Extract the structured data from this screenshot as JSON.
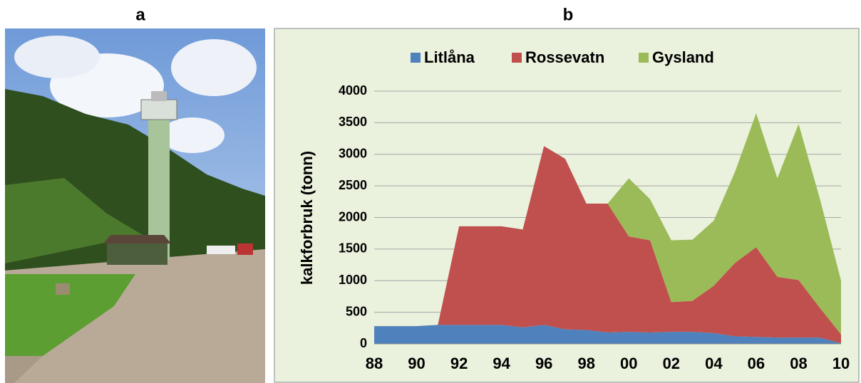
{
  "panel_a": {
    "label": "a"
  },
  "chart_data": {
    "type": "stacked_area",
    "panel_label": "b",
    "y_label": "kalkforbruk (tonn)",
    "categories": [
      "88",
      null,
      "90",
      null,
      "92",
      null,
      "94",
      null,
      "96",
      null,
      "98",
      null,
      "00",
      null,
      "02",
      null,
      "04",
      null,
      "06",
      null,
      "08",
      null,
      "10"
    ],
    "series": [
      {
        "name": "Litlåna",
        "color": "#4f81bd",
        "values": [
          280,
          280,
          280,
          300,
          300,
          300,
          300,
          260,
          300,
          230,
          220,
          180,
          190,
          180,
          190,
          190,
          170,
          120,
          110,
          100,
          100,
          100,
          10
        ]
      },
      {
        "name": "Rossevatn",
        "color": "#c0504d",
        "values": [
          0,
          0,
          0,
          0,
          1560,
          1560,
          1560,
          1550,
          2830,
          2700,
          2000,
          2040,
          1510,
          1460,
          470,
          490,
          750,
          1160,
          1420,
          960,
          910,
          470,
          140
        ]
      },
      {
        "name": "Gysland",
        "color": "#9bbb59",
        "values": [
          0,
          0,
          0,
          0,
          0,
          0,
          0,
          0,
          0,
          0,
          0,
          0,
          920,
          650,
          980,
          970,
          1030,
          1440,
          2120,
          1560,
          2470,
          1730,
          850
        ]
      }
    ],
    "ylim": [
      0,
      4000
    ],
    "yticks": [
      0,
      500,
      1000,
      1500,
      2000,
      2500,
      3000,
      3500,
      4000
    ],
    "grid": true,
    "legend": "top",
    "background": "#eaf1dd"
  }
}
